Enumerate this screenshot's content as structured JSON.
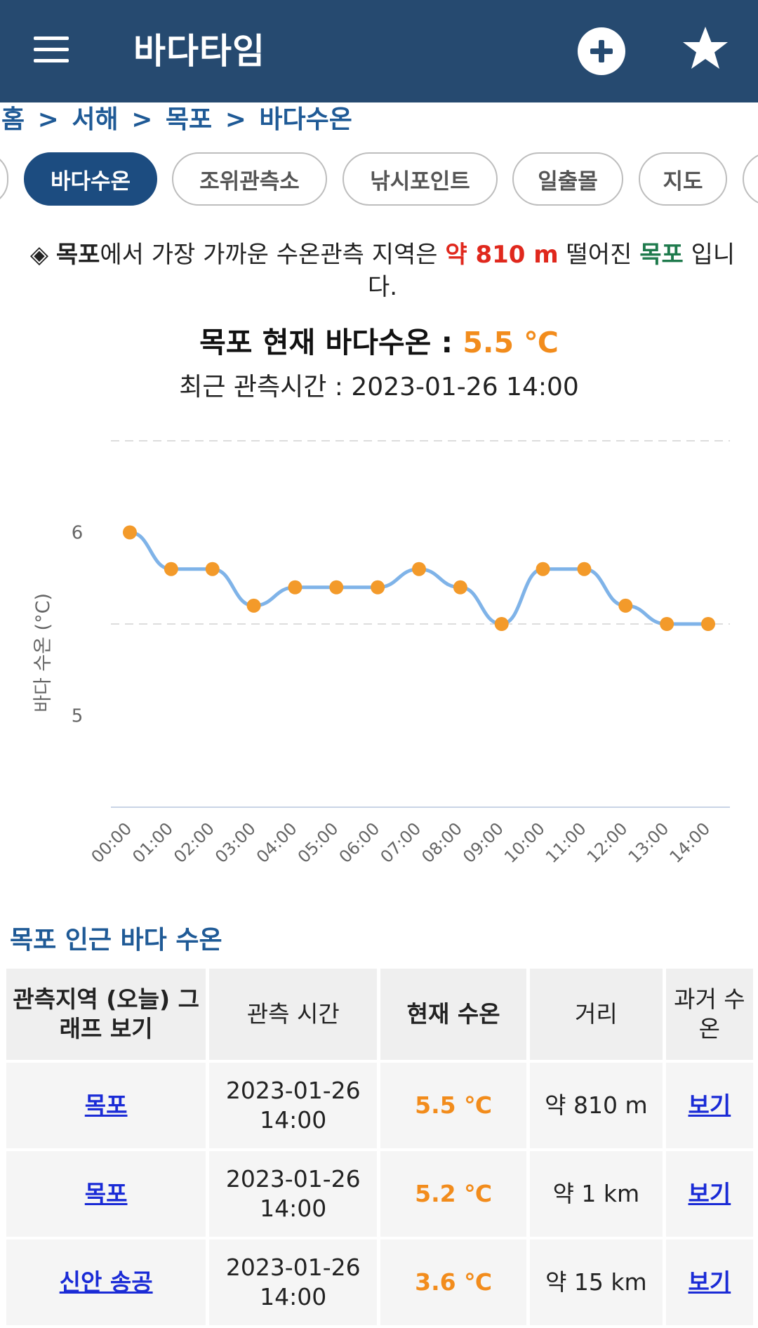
{
  "appbar": {
    "title": "바다타임",
    "menu_icon": "hamburger-menu-icon",
    "add_icon": "plus-circle-icon",
    "star_icon": "star-icon"
  },
  "breadcrumb": {
    "items": [
      "홈",
      ">",
      "서해",
      ">",
      "목포",
      ">",
      "바다수온"
    ]
  },
  "tabs": [
    {
      "label": "바다수온",
      "active": true
    },
    {
      "label": "조위관측소",
      "active": false
    },
    {
      "label": "낚시포인트",
      "active": false
    },
    {
      "label": "일출몰",
      "active": false
    },
    {
      "label": "지도",
      "active": false
    }
  ],
  "info": {
    "bullet": "◈",
    "place": "목포",
    "text1": "에서 가장 가까운 수온관측 지역은",
    "distance": "약 810 m",
    "text2": "떨어진",
    "station": "목포",
    "text3": "입니다."
  },
  "current": {
    "label": "목포 현재 바다수온 :",
    "temp": "5.5 ℃",
    "obs_time": "최근 관측시간 : 2023-01-26 14:00"
  },
  "chart_data": {
    "type": "line",
    "ylabel": "바다 수온 (°C)",
    "xlabel": "",
    "ylim": [
      4.5,
      6.5
    ],
    "yticks": [
      "6",
      "5"
    ],
    "x": [
      "00:00",
      "01:00",
      "02:00",
      "03:00",
      "04:00",
      "05:00",
      "06:00",
      "07:00",
      "08:00",
      "09:00",
      "10:00",
      "11:00",
      "12:00",
      "13:00",
      "14:00"
    ],
    "series": [
      {
        "name": "목포",
        "values": [
          6.0,
          5.8,
          5.8,
          5.6,
          5.7,
          5.7,
          5.7,
          5.8,
          5.7,
          5.5,
          5.8,
          5.8,
          5.6,
          5.5,
          5.5
        ]
      }
    ],
    "line_color": "#7fb3e8",
    "point_color": "#f39a2a"
  },
  "nearby": {
    "title": "목포 인근 바다 수온",
    "headers": {
      "station": "관측지역 (오늘) 그래프 보기",
      "time": "관측 시간",
      "temp": "현재 수온",
      "distance": "거리",
      "history": "과거 수온"
    },
    "rows": [
      {
        "station": "목포",
        "date": "2023-01-26",
        "time": "14:00",
        "temp": "5.5 ℃",
        "distance": "약 810 m",
        "link": "보기"
      },
      {
        "station": "목포",
        "date": "2023-01-26",
        "time": "14:00",
        "temp": "5.2 ℃",
        "distance": "약 1 km",
        "link": "보기"
      },
      {
        "station": "신안 송공",
        "date": "2023-01-26",
        "time": "14:00",
        "temp": "3.6 ℃",
        "distance": "약 15 km",
        "link": "보기"
      }
    ]
  }
}
